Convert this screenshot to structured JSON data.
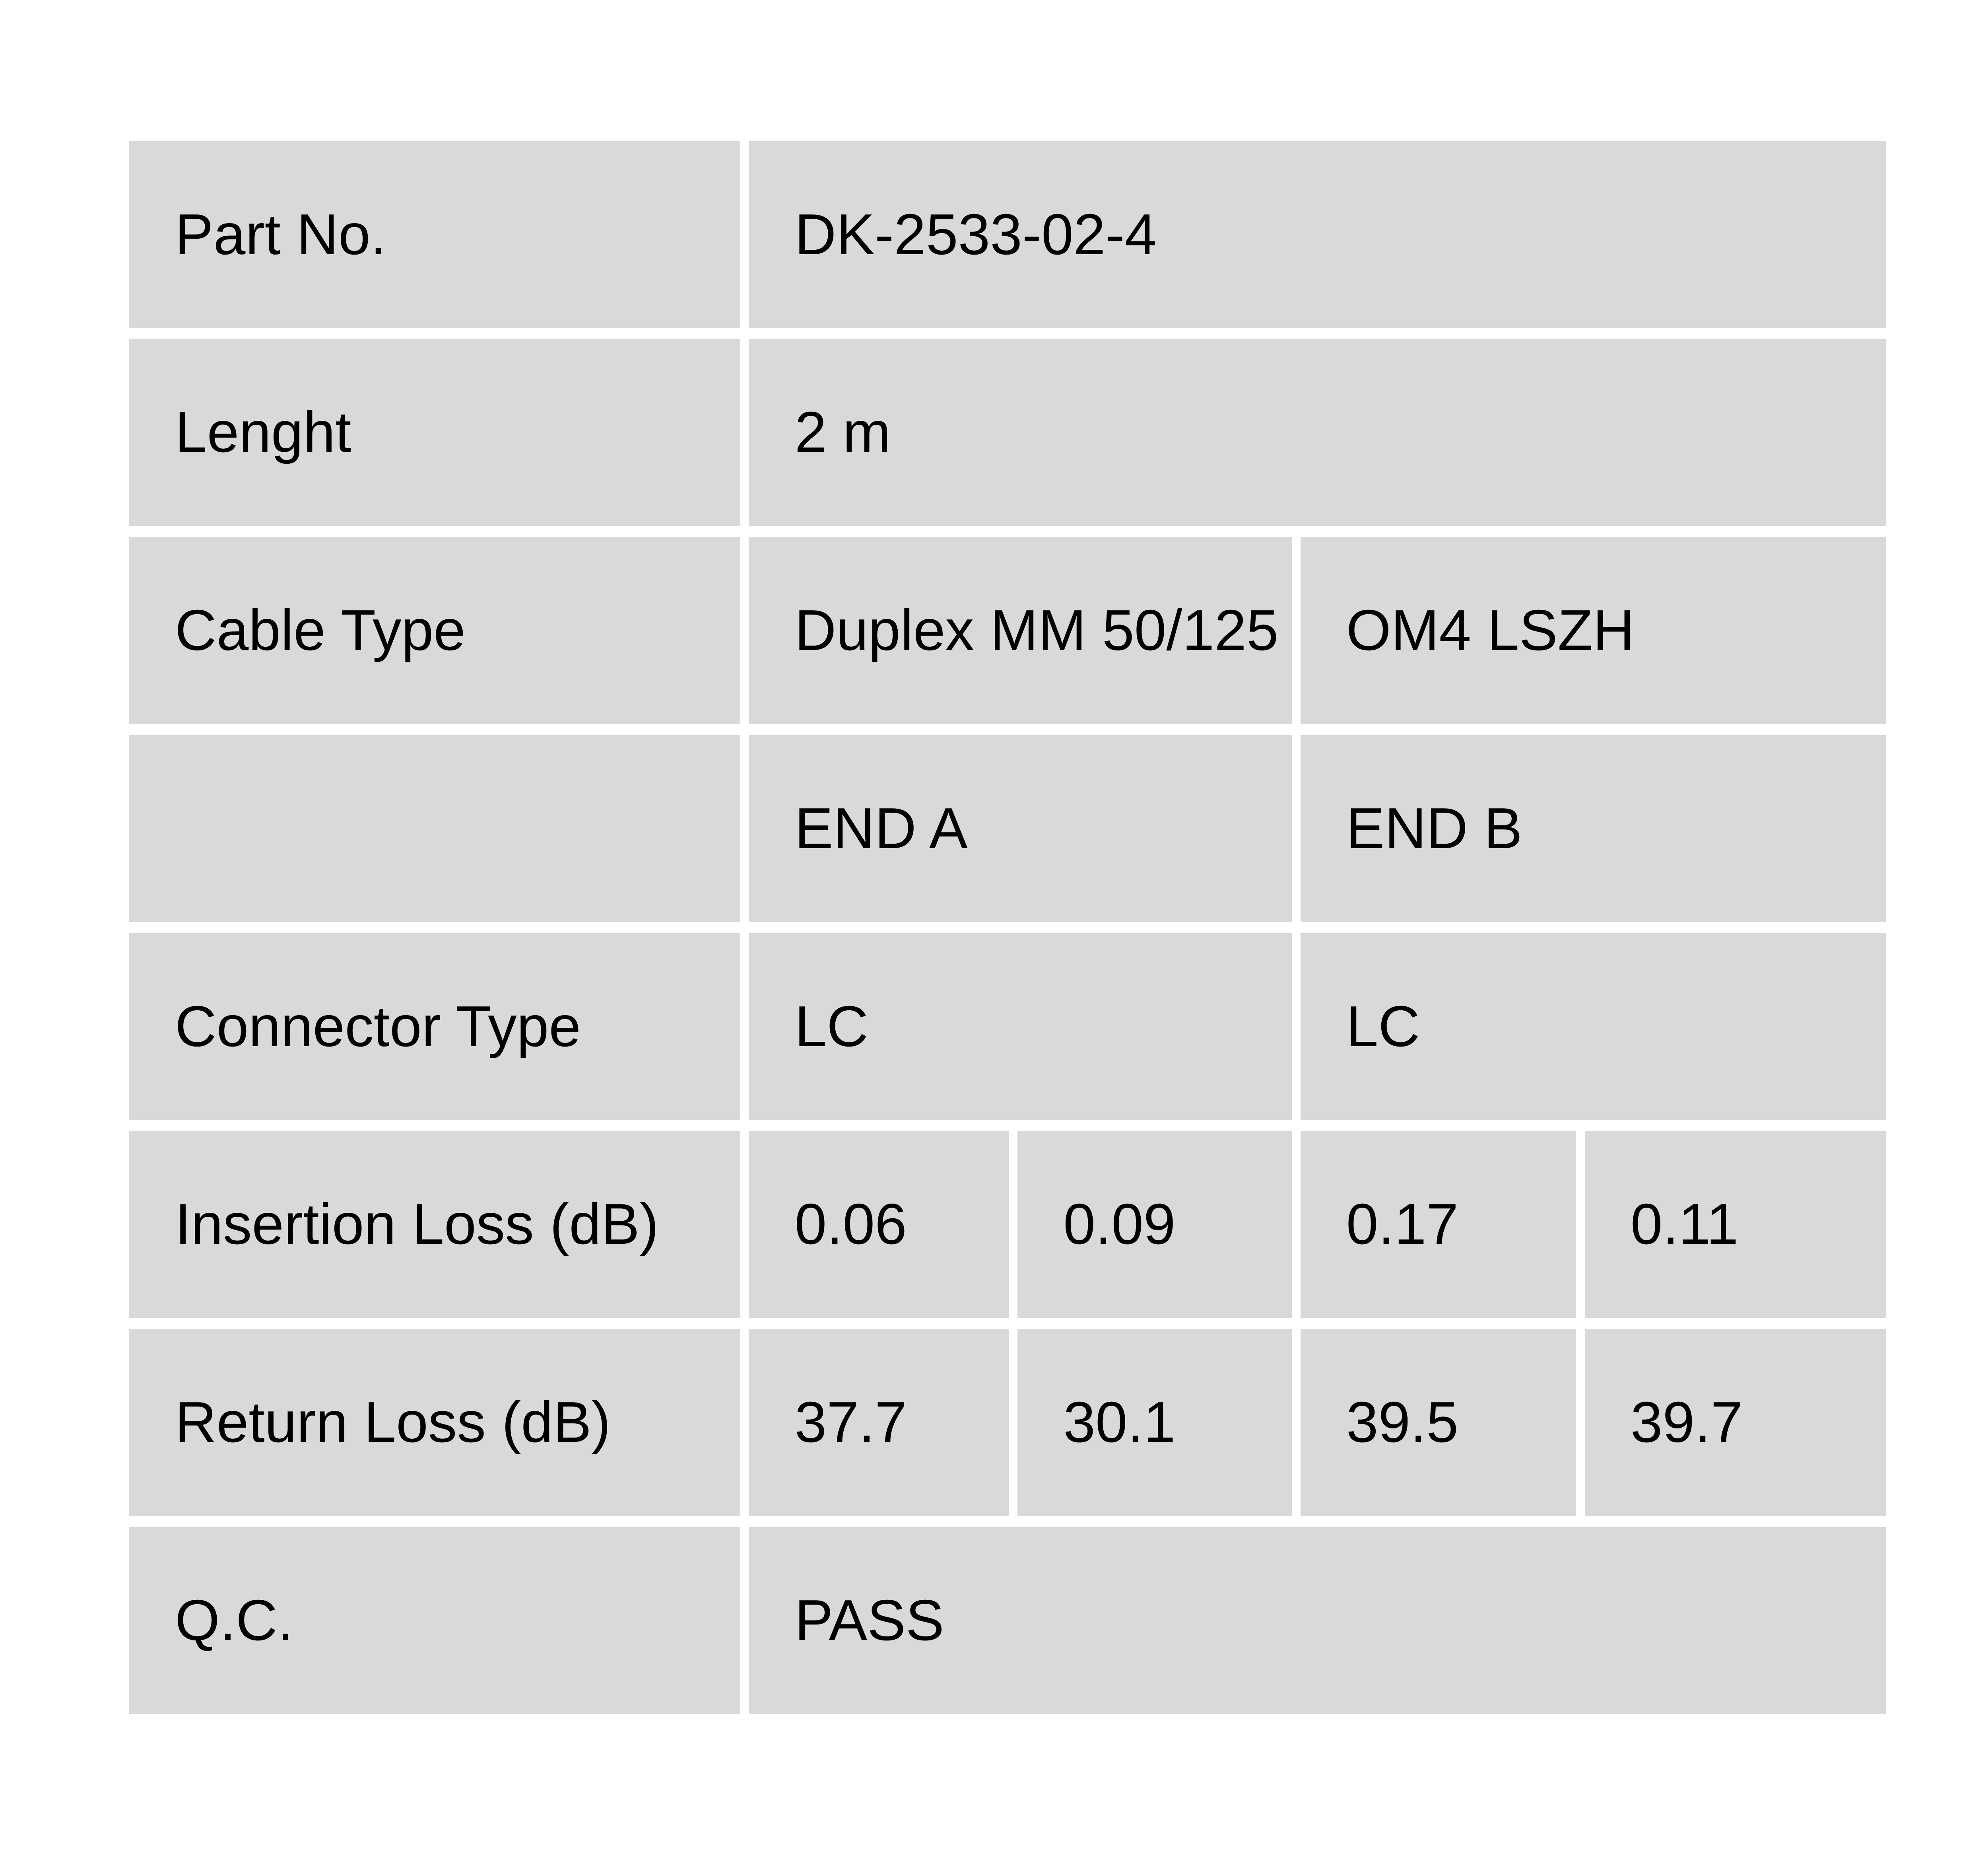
{
  "page": {
    "background_color": "#ffffff"
  },
  "table": {
    "cell_background_color": "#d9d9d9",
    "divider_color": "#ffffff",
    "text_color": "#000000",
    "rows": [
      {
        "label": "Part No.",
        "cells": [
          {
            "text": "DK-2533-02-4",
            "span": 4
          }
        ]
      },
      {
        "label": "Lenght",
        "cells": [
          {
            "text": "2 m",
            "span": 4
          }
        ]
      },
      {
        "label": "Cable Type",
        "cells": [
          {
            "text": "Duplex MM 50/125",
            "span": 2
          },
          {
            "text": "OM4 LSZH",
            "span": 2
          }
        ]
      },
      {
        "label": "",
        "cells": [
          {
            "text": "END A",
            "span": 2
          },
          {
            "text": "END B",
            "span": 2
          }
        ]
      },
      {
        "label": "Connector Type",
        "cells": [
          {
            "text": "LC",
            "span": 2
          },
          {
            "text": "LC",
            "span": 2
          }
        ]
      },
      {
        "label": "Insertion Loss (dB)",
        "cells": [
          {
            "text": "0.06",
            "span": 1
          },
          {
            "text": "0.09",
            "span": 1
          },
          {
            "text": "0.17",
            "span": 1
          },
          {
            "text": "0.11",
            "span": 1
          }
        ]
      },
      {
        "label": "Return Loss (dB)",
        "cells": [
          {
            "text": "37.7",
            "span": 1
          },
          {
            "text": "30.1",
            "span": 1
          },
          {
            "text": "39.5",
            "span": 1
          },
          {
            "text": "39.7",
            "span": 1
          }
        ]
      },
      {
        "label": "Q.C.",
        "cells": [
          {
            "text": "PASS",
            "span": 4
          }
        ]
      }
    ]
  }
}
